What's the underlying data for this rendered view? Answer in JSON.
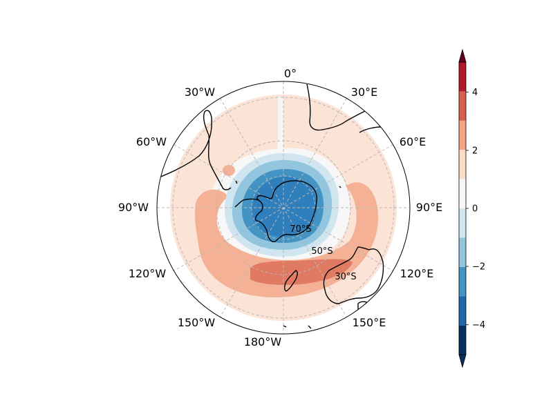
{
  "map": {
    "projection": "south-polar-stereographic",
    "longitude_labels": [
      "0°",
      "30°E",
      "60°E",
      "90°E",
      "120°E",
      "150°E",
      "180°W",
      "150°W",
      "120°W",
      "90°W",
      "60°W",
      "30°W"
    ],
    "latitude_labels": [
      "70°S",
      "50°S",
      "30°S"
    ],
    "gridlines": "dashed-grey",
    "coastlines": [
      "Antarctica",
      "South America",
      "Africa",
      "Australia",
      "New Zealand"
    ]
  },
  "colorbar": {
    "tick_labels": [
      "4",
      "2",
      "0",
      "−2",
      "−4"
    ],
    "levels": [
      -5,
      -4,
      -3,
      -2,
      -1,
      0,
      1,
      2,
      3,
      4,
      5
    ],
    "colors": [
      "#053061",
      "#2166ac",
      "#4393c3",
      "#92c5de",
      "#d1e5f0",
      "#f7f7f7",
      "#fddbc7",
      "#f4a582",
      "#d6604d",
      "#b2182b",
      "#67001f"
    ],
    "extend": "both"
  },
  "field": {
    "pattern": "negative centre over Antarctica, positive ring in mid-latitudes, strongest near New Zealand",
    "min_approx": -4,
    "max_approx": 3
  }
}
